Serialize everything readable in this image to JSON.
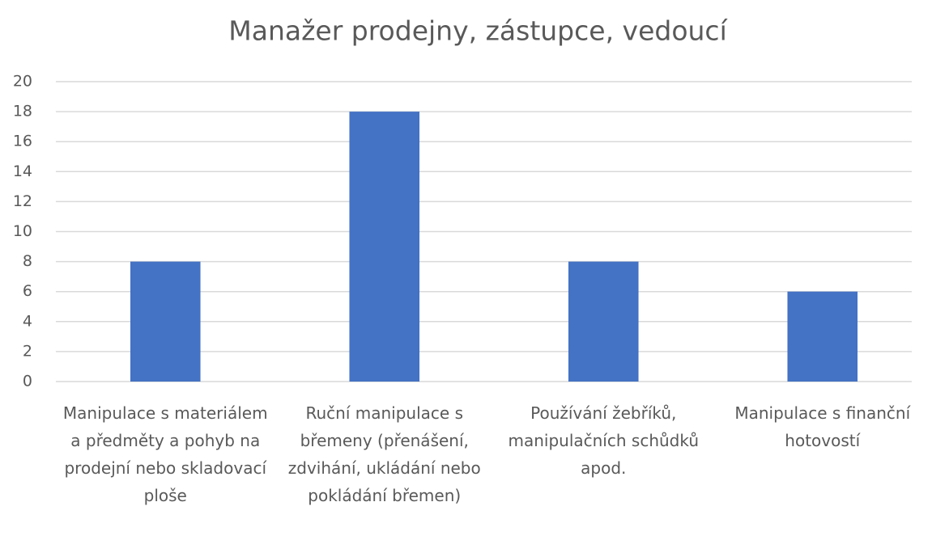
{
  "chart_data": {
    "type": "bar",
    "title": "Manažer prodejny, zástupce, vedoucí",
    "categories": [
      "Manipulace s materiálem a předměty a pohyb na prodejní nebo skladovací ploše",
      "Ruční manipulace s břemeny (přenášení, zdvihání, ukládání nebo pokládání břemen)",
      "Používání žebříků, manipulačních schůdků apod.",
      "Manipulace s finanční hotovostí"
    ],
    "values": [
      8,
      18,
      8,
      6
    ],
    "color": "#4472c4",
    "ylim": [
      0,
      20
    ],
    "yticks": [
      0,
      2,
      4,
      6,
      8,
      10,
      12,
      14,
      16,
      18,
      20
    ],
    "grid": true
  }
}
